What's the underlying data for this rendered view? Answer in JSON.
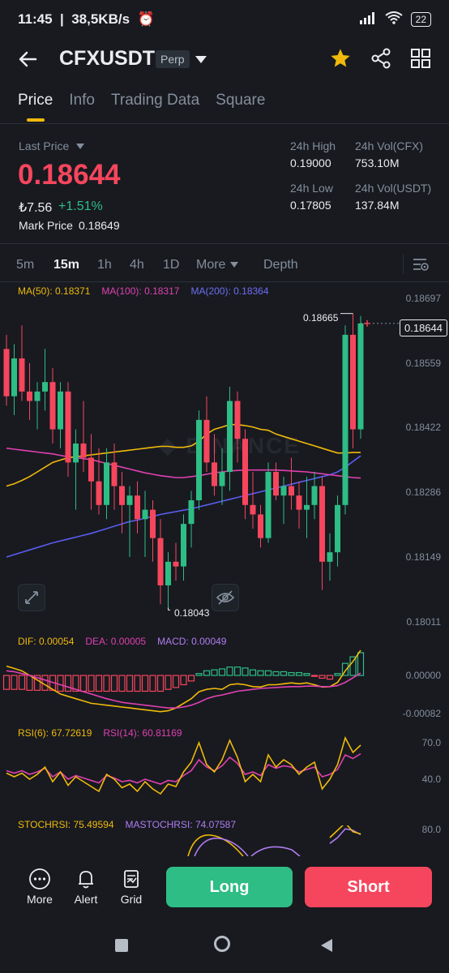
{
  "status_bar": {
    "time": "11:45",
    "speed": "38,5KB/s",
    "battery": "22"
  },
  "header": {
    "symbol": "CFXUSDT",
    "contract_type": "Perp"
  },
  "tabs": [
    {
      "label": "Price",
      "active": true
    },
    {
      "label": "Info"
    },
    {
      "label": "Trading Data"
    },
    {
      "label": "Square"
    }
  ],
  "price_panel": {
    "last_price_label": "Last Price",
    "last_price": "0.18644",
    "fiat_price": "₺7.56",
    "change": "+1.51%",
    "mark_price_label": "Mark Price",
    "mark_price": "0.18649",
    "high_label": "24h High",
    "high": "0.19000",
    "low_label": "24h Low",
    "low": "0.17805",
    "vol_base_label": "24h Vol(CFX)",
    "vol_base": "753.10M",
    "vol_quote_label": "24h Vol(USDT)",
    "vol_quote": "137.84M"
  },
  "timeframes": [
    "5m",
    "15m",
    "1h",
    "4h",
    "1D",
    "More",
    "Depth"
  ],
  "ma_legend": {
    "ma50": "MA(50): 0.18371",
    "ma100": "MA(100): 0.18317",
    "ma200": "MA(200): 0.18364"
  },
  "price_axis": [
    "0.18697",
    "0.18559",
    "0.18422",
    "0.18286",
    "0.18149",
    "0.18011"
  ],
  "current_price_tag": "0.18644",
  "high_marker": "0.18665",
  "low_marker": "0.18043",
  "macd_legend": {
    "dif": "DIF: 0.00054",
    "dea": "DEA: 0.00005",
    "macd": "MACD: 0.00049"
  },
  "macd_axis": [
    "0.00000",
    "-0.00082"
  ],
  "rsi_legend": {
    "rsi6": "RSI(6): 67.72619",
    "rsi14": "RSI(14): 60.81169"
  },
  "rsi_axis": [
    "70.0",
    "40.0"
  ],
  "stoch_legend": {
    "stoch": "STOCHRSI: 75.49594",
    "mastoch": "MASTOCHRSI: 74.07587"
  },
  "stoch_axis": [
    "80.0"
  ],
  "bottom_bar": {
    "more": "More",
    "alert": "Alert",
    "grid": "Grid",
    "long": "Long",
    "short": "Short"
  },
  "colors": {
    "up": "#2ebd85",
    "down": "#f6465d",
    "accent": "#f0b90b",
    "ma50": "#f0b90b",
    "ma100": "#e040b0",
    "ma200": "#5a5cf0"
  },
  "chart_data": {
    "type": "candlestick",
    "interval": "15m",
    "candles": [
      {
        "o": 0.1859,
        "h": 0.1862,
        "l": 0.1847,
        "c": 0.1849
      },
      {
        "o": 0.1849,
        "h": 0.186,
        "l": 0.1845,
        "c": 0.1857
      },
      {
        "o": 0.1857,
        "h": 0.1864,
        "l": 0.1848,
        "c": 0.185
      },
      {
        "o": 0.185,
        "h": 0.1856,
        "l": 0.1844,
        "c": 0.1848
      },
      {
        "o": 0.1848,
        "h": 0.1852,
        "l": 0.1842,
        "c": 0.185
      },
      {
        "o": 0.185,
        "h": 0.1859,
        "l": 0.1846,
        "c": 0.1852
      },
      {
        "o": 0.1852,
        "h": 0.1855,
        "l": 0.1839,
        "c": 0.1842
      },
      {
        "o": 0.1842,
        "h": 0.1852,
        "l": 0.1838,
        "c": 0.185
      },
      {
        "o": 0.185,
        "h": 0.1852,
        "l": 0.1832,
        "c": 0.1835
      },
      {
        "o": 0.1835,
        "h": 0.1842,
        "l": 0.1825,
        "c": 0.1839
      },
      {
        "o": 0.1839,
        "h": 0.1848,
        "l": 0.1833,
        "c": 0.1836
      },
      {
        "o": 0.1836,
        "h": 0.1841,
        "l": 0.1825,
        "c": 0.1831
      },
      {
        "o": 0.1831,
        "h": 0.1838,
        "l": 0.1824,
        "c": 0.1826
      },
      {
        "o": 0.1826,
        "h": 0.1838,
        "l": 0.1823,
        "c": 0.1835
      },
      {
        "o": 0.1835,
        "h": 0.1839,
        "l": 0.1825,
        "c": 0.183
      },
      {
        "o": 0.183,
        "h": 0.1833,
        "l": 0.182,
        "c": 0.1826
      },
      {
        "o": 0.1826,
        "h": 0.183,
        "l": 0.1815,
        "c": 0.1828
      },
      {
        "o": 0.1828,
        "h": 0.1831,
        "l": 0.182,
        "c": 0.1823
      },
      {
        "o": 0.1823,
        "h": 0.1829,
        "l": 0.1815,
        "c": 0.1825
      },
      {
        "o": 0.1825,
        "h": 0.1827,
        "l": 0.1814,
        "c": 0.1819
      },
      {
        "o": 0.1819,
        "h": 0.1823,
        "l": 0.1805,
        "c": 0.1809
      },
      {
        "o": 0.1809,
        "h": 0.1816,
        "l": 0.18043,
        "c": 0.1814
      },
      {
        "o": 0.1814,
        "h": 0.1818,
        "l": 0.181,
        "c": 0.1813
      },
      {
        "o": 0.1813,
        "h": 0.1824,
        "l": 0.181,
        "c": 0.1822
      },
      {
        "o": 0.1822,
        "h": 0.1829,
        "l": 0.1817,
        "c": 0.1827
      },
      {
        "o": 0.1827,
        "h": 0.1846,
        "l": 0.1825,
        "c": 0.1844
      },
      {
        "o": 0.1844,
        "h": 0.1849,
        "l": 0.1833,
        "c": 0.1835
      },
      {
        "o": 0.1835,
        "h": 0.1841,
        "l": 0.1828,
        "c": 0.183
      },
      {
        "o": 0.183,
        "h": 0.1838,
        "l": 0.1826,
        "c": 0.1833
      },
      {
        "o": 0.1833,
        "h": 0.1851,
        "l": 0.1829,
        "c": 0.1848
      },
      {
        "o": 0.1848,
        "h": 0.185,
        "l": 0.1835,
        "c": 0.184
      },
      {
        "o": 0.184,
        "h": 0.1842,
        "l": 0.1823,
        "c": 0.1826
      },
      {
        "o": 0.1826,
        "h": 0.1833,
        "l": 0.1821,
        "c": 0.1824
      },
      {
        "o": 0.1824,
        "h": 0.1826,
        "l": 0.1817,
        "c": 0.1819
      },
      {
        "o": 0.1819,
        "h": 0.1835,
        "l": 0.1818,
        "c": 0.1833
      },
      {
        "o": 0.1833,
        "h": 0.1835,
        "l": 0.1827,
        "c": 0.1828
      },
      {
        "o": 0.1828,
        "h": 0.1832,
        "l": 0.1822,
        "c": 0.183
      },
      {
        "o": 0.183,
        "h": 0.1836,
        "l": 0.1825,
        "c": 0.1828
      },
      {
        "o": 0.1828,
        "h": 0.1831,
        "l": 0.1821,
        "c": 0.1825
      },
      {
        "o": 0.1825,
        "h": 0.1832,
        "l": 0.1819,
        "c": 0.1826
      },
      {
        "o": 0.1826,
        "h": 0.1833,
        "l": 0.1823,
        "c": 0.183
      },
      {
        "o": 0.183,
        "h": 0.1832,
        "l": 0.1808,
        "c": 0.1814
      },
      {
        "o": 0.1814,
        "h": 0.182,
        "l": 0.181,
        "c": 0.1816
      },
      {
        "o": 0.1816,
        "h": 0.1828,
        "l": 0.1813,
        "c": 0.1826
      },
      {
        "o": 0.1826,
        "h": 0.1864,
        "l": 0.1824,
        "c": 0.1862
      },
      {
        "o": 0.1862,
        "h": 0.18665,
        "l": 0.1838,
        "c": 0.1842
      },
      {
        "o": 0.1842,
        "h": 0.1866,
        "l": 0.184,
        "c": 0.18644
      }
    ],
    "ma50": [
      0.183,
      0.18305,
      0.18312,
      0.1832,
      0.1833,
      0.1834,
      0.1835,
      0.18355,
      0.1836,
      0.18362,
      0.18364,
      0.18366,
      0.18368,
      0.1837,
      0.18372,
      0.18374,
      0.18376,
      0.18378,
      0.1838,
      0.18382,
      0.18384,
      0.18384,
      0.18382,
      0.18382,
      0.18385,
      0.18395,
      0.1841,
      0.1842,
      0.18425,
      0.1843,
      0.1843,
      0.18428,
      0.18425,
      0.1842,
      0.18418,
      0.1841,
      0.18405,
      0.184,
      0.18395,
      0.1839,
      0.18385,
      0.1838,
      0.18375,
      0.1837,
      0.1837,
      0.18371,
      0.18371
    ],
    "ma100": [
      0.1838,
      0.18378,
      0.18376,
      0.18374,
      0.18372,
      0.1837,
      0.18368,
      0.18365,
      0.18362,
      0.1836,
      0.18358,
      0.18356,
      0.18352,
      0.18348,
      0.18344,
      0.1834,
      0.18336,
      0.18332,
      0.18328,
      0.18325,
      0.18322,
      0.1832,
      0.18318,
      0.18318,
      0.1832,
      0.18322,
      0.18325,
      0.18328,
      0.1833,
      0.18332,
      0.18333,
      0.18334,
      0.18334,
      0.18334,
      0.18334,
      0.18334,
      0.18333,
      0.18332,
      0.18331,
      0.1833,
      0.18328,
      0.18326,
      0.18324,
      0.18322,
      0.1832,
      0.18318,
      0.18317
    ],
    "ma200": [
      0.1815,
      0.18155,
      0.1816,
      0.18165,
      0.1817,
      0.18175,
      0.1818,
      0.18184,
      0.18188,
      0.18192,
      0.18196,
      0.182,
      0.18205,
      0.1821,
      0.18215,
      0.1822,
      0.18225,
      0.18228,
      0.18232,
      0.18236,
      0.1824,
      0.18243,
      0.18246,
      0.18249,
      0.18252,
      0.18256,
      0.1826,
      0.18264,
      0.18268,
      0.18272,
      0.18276,
      0.1828,
      0.18284,
      0.18288,
      0.18292,
      0.18296,
      0.183,
      0.18304,
      0.18308,
      0.18312,
      0.18316,
      0.1832,
      0.18324,
      0.1833,
      0.1834,
      0.18352,
      0.18364
    ],
    "macd_hist": [
      -0.0003,
      -0.0003,
      -0.0003,
      -0.00032,
      -0.00032,
      -0.00032,
      -0.00032,
      -0.00034,
      -0.00034,
      -0.00034,
      -0.00034,
      -0.00034,
      -0.00034,
      -0.00034,
      -0.00034,
      -0.00034,
      -0.00034,
      -0.00034,
      -0.00034,
      -0.00034,
      -0.00034,
      -0.0003,
      -0.00026,
      -0.0002,
      -0.00012,
      4e-05,
      0.0001,
      0.00012,
      0.00014,
      0.00018,
      0.00018,
      0.00016,
      0.00012,
      0.0001,
      0.0001,
      8e-05,
      8e-05,
      6e-05,
      6e-05,
      4e-05,
      -2e-05,
      -6e-05,
      -8e-05,
      4e-05,
      0.00026,
      0.0004,
      0.00049
    ],
    "dif": [
      0.0002,
      0.00015,
      0.0001,
      0.0,
      -0.0001,
      -0.0002,
      -0.0003,
      -0.0004,
      -0.00045,
      -0.0005,
      -0.00055,
      -0.0006,
      -0.00062,
      -0.00064,
      -0.00066,
      -0.00068,
      -0.0007,
      -0.00072,
      -0.00074,
      -0.00076,
      -0.00078,
      -0.00076,
      -0.0007,
      -0.0006,
      -0.0005,
      -0.00035,
      -0.0003,
      -0.00028,
      -0.0003,
      -0.0002,
      -0.00018,
      -0.0002,
      -0.00024,
      -0.00025,
      -0.0002,
      -0.0002,
      -0.00018,
      -0.00016,
      -0.00018,
      -0.00016,
      -0.0002,
      -0.00025,
      -0.00024,
      -0.00015,
      0.0001,
      0.0003,
      0.00054
    ],
    "dea": [
      0.0001,
      8e-05,
      4e-05,
      0.0,
      -5e-05,
      -0.0001,
      -0.00015,
      -0.0002,
      -0.00025,
      -0.0003,
      -0.00035,
      -0.0004,
      -0.00045,
      -0.0005,
      -0.00054,
      -0.00058,
      -0.0006,
      -0.00062,
      -0.00064,
      -0.00066,
      -0.00068,
      -0.0007,
      -0.0007,
      -0.00068,
      -0.00064,
      -0.00058,
      -0.0005,
      -0.00045,
      -0.00042,
      -0.00038,
      -0.00034,
      -0.00032,
      -0.0003,
      -0.00028,
      -0.00027,
      -0.00026,
      -0.00025,
      -0.00024,
      -0.00024,
      -0.00023,
      -0.00023,
      -0.00024,
      -0.00024,
      -0.00022,
      -0.00015,
      -5e-05,
      5e-05
    ],
    "rsi6": [
      45,
      42,
      45,
      40,
      44,
      50,
      38,
      46,
      35,
      42,
      38,
      34,
      30,
      44,
      40,
      33,
      36,
      30,
      38,
      32,
      28,
      36,
      34,
      46,
      54,
      70,
      52,
      46,
      56,
      72,
      58,
      38,
      44,
      38,
      60,
      50,
      56,
      52,
      44,
      50,
      54,
      32,
      40,
      52,
      74,
      62,
      68
    ],
    "rsi14": [
      47,
      45,
      47,
      44,
      46,
      49,
      42,
      46,
      40,
      43,
      41,
      39,
      37,
      43,
      41,
      38,
      39,
      37,
      40,
      38,
      36,
      39,
      38,
      43,
      47,
      56,
      50,
      47,
      51,
      58,
      53,
      44,
      46,
      43,
      52,
      49,
      51,
      50,
      46,
      48,
      50,
      42,
      44,
      48,
      60,
      57,
      61
    ],
    "stochrsi": [
      null,
      null,
      null,
      null,
      null,
      null,
      null,
      null,
      null,
      null,
      null,
      null,
      null,
      null,
      null,
      null,
      null,
      null,
      null,
      null,
      null,
      null,
      null,
      null,
      null,
      null,
      null,
      null,
      null,
      null,
      null,
      null,
      null,
      null,
      null,
      null,
      null,
      null,
      null,
      null,
      null,
      null,
      70,
      80,
      90,
      78,
      75
    ],
    "mastochrsi": [
      null,
      null,
      null,
      null,
      null,
      null,
      null,
      null,
      null,
      null,
      null,
      null,
      null,
      null,
      null,
      null,
      null,
      null,
      null,
      null,
      null,
      null,
      null,
      null,
      null,
      null,
      null,
      null,
      null,
      null,
      null,
      null,
      null,
      null,
      null,
      null,
      null,
      null,
      null,
      null,
      null,
      null,
      62,
      70,
      82,
      80,
      74
    ]
  }
}
